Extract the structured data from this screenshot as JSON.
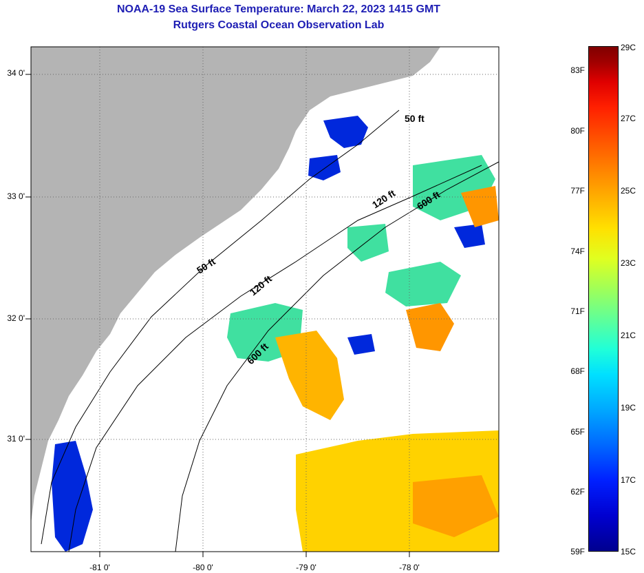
{
  "title_line1": "NOAA-19 Sea Surface Temperature:  March 22, 2023 1415 GMT",
  "title_line2": "Rutgers Coastal Ocean Observation Lab",
  "map": {
    "lat_labels": [
      "34 0'",
      "33 0'",
      "32 0'",
      "31 0'"
    ],
    "lon_labels": [
      "-81 0'",
      "-80 0'",
      "-79 0'",
      "-78 0'"
    ],
    "isobaths": [
      "50 ft",
      "120 ft",
      "600 ft",
      "50 ft",
      "120 ft",
      "600 ft"
    ]
  },
  "colorbar": {
    "fahrenheit": [
      "83F",
      "80F",
      "77F",
      "74F",
      "71F",
      "68F",
      "65F",
      "62F",
      "59F"
    ],
    "celsius": [
      "29C",
      "27C",
      "25C",
      "23C",
      "21C",
      "19C",
      "17C",
      "15C"
    ]
  },
  "colors": {
    "title": "#1e1eb4",
    "land": "#b4b4b4",
    "water_cold": "#0028dc",
    "water_warm": "#ffd200",
    "water_hot": "#ff9600"
  }
}
